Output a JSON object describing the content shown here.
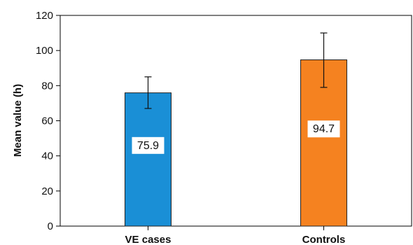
{
  "chart_data": {
    "type": "bar",
    "title": "",
    "xlabel": "",
    "ylabel": "Mean value (h)",
    "ylim": [
      0,
      120
    ],
    "yticks": [
      0,
      20,
      40,
      60,
      80,
      100,
      120
    ],
    "grid": false,
    "categories": [
      "VE cases",
      "Controls"
    ],
    "values": [
      75.9,
      94.7
    ],
    "data_labels": [
      "75.9",
      "94.7"
    ],
    "error_upper": [
      85,
      110
    ],
    "error_lower": [
      67,
      79
    ],
    "colors": [
      "#1a8fd6",
      "#f58220"
    ]
  }
}
